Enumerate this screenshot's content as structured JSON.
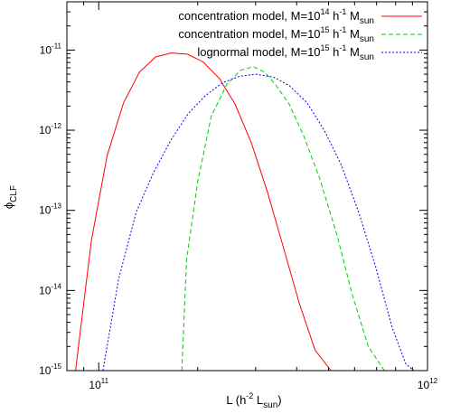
{
  "chart_data": {
    "type": "line",
    "title": "",
    "xlabel": {
      "text": "L (h",
      "sup": "-2",
      "mid": " L",
      "sub": "sun",
      "end": ")"
    },
    "ylabel": {
      "text": "ϕ",
      "sub": "CLF"
    },
    "xscale": "log",
    "yscale": "log",
    "xlim": [
      80000000000.0,
      1000000000000.0
    ],
    "ylim": [
      1e-15,
      4e-11
    ],
    "x_major_ticks": [
      {
        "value": 100000000000.0,
        "base": "10",
        "exp": "11"
      },
      {
        "value": 1000000000000.0,
        "base": "10",
        "exp": "12"
      }
    ],
    "y_major_ticks": [
      {
        "value": 1e-15,
        "base": "10",
        "exp": "-15"
      },
      {
        "value": 1e-14,
        "base": "10",
        "exp": "-14"
      },
      {
        "value": 1e-13,
        "base": "10",
        "exp": "-13"
      },
      {
        "value": 1e-12,
        "base": "10",
        "exp": "-12"
      },
      {
        "value": 1e-11,
        "base": "10",
        "exp": "-11"
      }
    ],
    "legend_position": "top-right",
    "series": [
      {
        "name": "concentration model, M=10^14 h^-1 M_sun",
        "label_parts": {
          "a": "concentration model, M=10",
          "exp": "14",
          "b": " h",
          "exp2": "-1",
          "c": " M",
          "sub": "sun"
        },
        "color": "#ff0000",
        "dash": "solid",
        "x": [
          85000000000.0,
          95000000000.0,
          106000000000.0,
          119000000000.0,
          133000000000.0,
          149000000000.0,
          166000000000.0,
          186000000000.0,
          208000000000.0,
          233000000000.0,
          260000000000.0,
          291000000000.0,
          326000000000.0,
          364000000000.0,
          407000000000.0,
          455000000000.0,
          509000000000.0,
          540000000000.0
        ],
        "y": [
          1e-15,
          4.2e-14,
          4.8e-13,
          2.2e-12,
          5.3e-12,
          8.2e-12,
          9.2e-12,
          8.9e-12,
          7.1e-12,
          4.4e-12,
          2.1e-12,
          7e-13,
          1.7e-13,
          3.5e-14,
          7e-15,
          1.8e-15,
          1e-15,
          1e-15
        ]
      },
      {
        "name": "concentration model, M=10^15 h^-1 M_sun",
        "label_parts": {
          "a": "concentration model, M=10",
          "exp": "15",
          "b": " h",
          "exp2": "-1",
          "c": " M",
          "sub": "sun"
        },
        "color": "#00cc00",
        "dash": "dashed",
        "x": [
          179000000000.0,
          185000000000.0,
          200000000000.0,
          220000000000.0,
          245000000000.0,
          270000000000.0,
          295000000000.0,
          320000000000.0,
          345000000000.0,
          380000000000.0,
          420000000000.0,
          470000000000.0,
          530000000000.0,
          590000000000.0,
          660000000000.0,
          740000000000.0,
          810000000000.0,
          850000000000.0
        ],
        "y": [
          1e-15,
          2.4e-14,
          2.3e-13,
          1.5e-12,
          3.7e-12,
          5.6e-12,
          6.2e-12,
          5.3e-12,
          3.7e-12,
          2.1e-12,
          8.5e-13,
          2.5e-13,
          5e-14,
          9e-15,
          2e-15,
          1e-15,
          1e-15,
          1e-15
        ]
      },
      {
        "name": "lognormal model, M=10^15 h^-1 M_sun",
        "label_parts": {
          "a": "lognormal model, M=10",
          "exp": "15",
          "b": " h",
          "exp2": "-1",
          "c": " M",
          "sub": "sun"
        },
        "color": "#0000ff",
        "dash": "dotted",
        "x": [
          103000000000.0,
          115000000000.0,
          130000000000.0,
          147000000000.0,
          166000000000.0,
          187000000000.0,
          211000000000.0,
          238000000000.0,
          268000000000.0,
          300000000000.0,
          340000000000.0,
          380000000000.0,
          430000000000.0,
          485000000000.0,
          545000000000.0,
          615000000000.0,
          695000000000.0,
          780000000000.0,
          860000000000.0,
          910000000000.0
        ],
        "y": [
          1e-15,
          1.4e-14,
          9.5e-14,
          3e-13,
          7.6e-13,
          1.6e-12,
          2.7e-12,
          3.9e-12,
          4.7e-12,
          5e-12,
          4.6e-12,
          3.6e-12,
          2.2e-12,
          1e-12,
          3.8e-13,
          1e-13,
          2e-14,
          3.5e-15,
          1.2e-15,
          1e-15
        ]
      }
    ]
  }
}
